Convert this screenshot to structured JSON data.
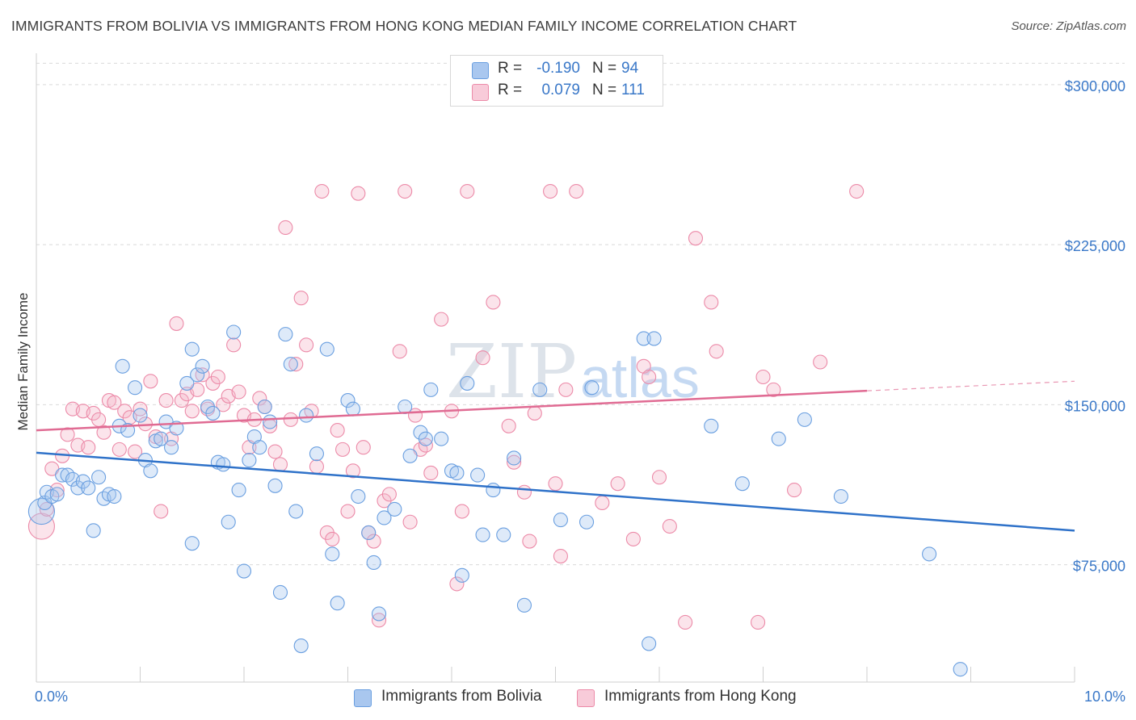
{
  "header": {
    "title": "IMMIGRANTS FROM BOLIVIA VS IMMIGRANTS FROM HONG KONG MEDIAN FAMILY INCOME CORRELATION CHART",
    "source": "Source: ZipAtlas.com"
  },
  "legend": {
    "rows": [
      {
        "r_label": "R =",
        "r_value": "-0.190",
        "n_label": "N =",
        "n_value": "94",
        "color": "#a9c7ef"
      },
      {
        "r_label": "R =",
        "r_value": "0.079",
        "n_label": "N =",
        "n_value": "111",
        "color": "#f5b8cb"
      }
    ]
  },
  "bottom_legend": {
    "items": [
      {
        "label": "Immigrants from Bolivia",
        "color": "#a9c7ef"
      },
      {
        "label": "Immigrants from Hong Kong",
        "color": "#f5b8cb"
      }
    ]
  },
  "watermark": {
    "zip": "ZIP",
    "atlas": "atlas"
  },
  "chart_data": {
    "type": "scatter",
    "title": "IMMIGRANTS FROM BOLIVIA VS IMMIGRANTS FROM HONG KONG MEDIAN FAMILY INCOME CORRELATION CHART",
    "xlabel": "",
    "ylabel": "Median Family Income",
    "xlim": [
      0,
      10
    ],
    "ylim": [
      20000,
      320000
    ],
    "x_tick_labels": [
      "0.0%",
      "10.0%"
    ],
    "y_ticks": [
      75000,
      150000,
      225000,
      300000
    ],
    "y_tick_labels": [
      "$75,000",
      "$150,000",
      "$225,000",
      "$300,000"
    ],
    "grid": true,
    "legend_position": "top-center",
    "series": [
      {
        "name": "Immigrants from Bolivia",
        "color": "#6a9fe0",
        "fill": "#a9c7ef",
        "trend": {
          "x": [
            0,
            10
          ],
          "y": [
            127500,
            91000
          ]
        },
        "points": [
          [
            0.05,
            100000
          ],
          [
            0.08,
            104000
          ],
          [
            0.1,
            109000
          ],
          [
            0.15,
            107000
          ],
          [
            0.2,
            108000
          ],
          [
            0.25,
            117000
          ],
          [
            0.3,
            117000
          ],
          [
            0.35,
            115000
          ],
          [
            0.4,
            111000
          ],
          [
            0.45,
            114000
          ],
          [
            0.5,
            111000
          ],
          [
            0.55,
            91000
          ],
          [
            0.6,
            116000
          ],
          [
            0.65,
            106000
          ],
          [
            0.7,
            108000
          ],
          [
            0.75,
            107000
          ],
          [
            0.8,
            140000
          ],
          [
            0.83,
            168000
          ],
          [
            0.88,
            138000
          ],
          [
            0.95,
            158000
          ],
          [
            1.0,
            145000
          ],
          [
            1.05,
            124000
          ],
          [
            1.1,
            119000
          ],
          [
            1.15,
            133000
          ],
          [
            1.2,
            134000
          ],
          [
            1.25,
            142000
          ],
          [
            1.3,
            130000
          ],
          [
            1.35,
            139000
          ],
          [
            1.45,
            160000
          ],
          [
            1.5,
            85000
          ],
          [
            1.5,
            176000
          ],
          [
            1.55,
            164000
          ],
          [
            1.6,
            168000
          ],
          [
            1.65,
            149000
          ],
          [
            1.7,
            146000
          ],
          [
            1.75,
            123000
          ],
          [
            1.8,
            122000
          ],
          [
            1.85,
            95000
          ],
          [
            1.9,
            184000
          ],
          [
            1.95,
            110000
          ],
          [
            2.0,
            72000
          ],
          [
            2.05,
            124000
          ],
          [
            2.1,
            135000
          ],
          [
            2.15,
            130000
          ],
          [
            2.2,
            149000
          ],
          [
            2.25,
            142000
          ],
          [
            2.3,
            112000
          ],
          [
            2.35,
            62000
          ],
          [
            2.4,
            183000
          ],
          [
            2.45,
            169000
          ],
          [
            2.5,
            100000
          ],
          [
            2.55,
            37000
          ],
          [
            2.6,
            145000
          ],
          [
            2.7,
            127000
          ],
          [
            2.8,
            176000
          ],
          [
            2.85,
            80000
          ],
          [
            2.9,
            57000
          ],
          [
            3.0,
            152000
          ],
          [
            3.05,
            148000
          ],
          [
            3.1,
            107000
          ],
          [
            3.2,
            90000
          ],
          [
            3.25,
            76000
          ],
          [
            3.3,
            52000
          ],
          [
            3.35,
            97000
          ],
          [
            3.45,
            101000
          ],
          [
            3.55,
            149000
          ],
          [
            3.6,
            126000
          ],
          [
            3.7,
            137000
          ],
          [
            3.75,
            134000
          ],
          [
            3.8,
            157000
          ],
          [
            3.9,
            134000
          ],
          [
            4.0,
            119000
          ],
          [
            4.05,
            118000
          ],
          [
            4.1,
            70000
          ],
          [
            4.15,
            160000
          ],
          [
            4.25,
            117000
          ],
          [
            4.3,
            89000
          ],
          [
            4.4,
            110000
          ],
          [
            4.5,
            89000
          ],
          [
            4.6,
            125000
          ],
          [
            4.7,
            56000
          ],
          [
            4.85,
            157000
          ],
          [
            5.05,
            96000
          ],
          [
            5.3,
            95000
          ],
          [
            5.35,
            158000
          ],
          [
            5.85,
            181000
          ],
          [
            5.9,
            38000
          ],
          [
            5.95,
            181000
          ],
          [
            6.5,
            140000
          ],
          [
            6.8,
            113000
          ],
          [
            7.15,
            134000
          ],
          [
            7.4,
            143000
          ],
          [
            7.75,
            107000
          ],
          [
            8.6,
            80000
          ],
          [
            8.9,
            26000
          ]
        ]
      },
      {
        "name": "Immigrants from Hong Kong",
        "color": "#ec8aa8",
        "fill": "#f5b8cb",
        "trend": {
          "x": [
            0,
            8.0
          ],
          "y": [
            138000,
            156500
          ]
        },
        "trend_dashed": {
          "x": [
            8.0,
            10
          ],
          "y": [
            156500,
            161000
          ]
        },
        "points": [
          [
            0.05,
            93000
          ],
          [
            0.1,
            101000
          ],
          [
            0.15,
            120000
          ],
          [
            0.2,
            110000
          ],
          [
            0.25,
            126000
          ],
          [
            0.3,
            136000
          ],
          [
            0.35,
            148000
          ],
          [
            0.4,
            131000
          ],
          [
            0.45,
            147000
          ],
          [
            0.5,
            130000
          ],
          [
            0.55,
            146000
          ],
          [
            0.6,
            143000
          ],
          [
            0.65,
            137000
          ],
          [
            0.7,
            152000
          ],
          [
            0.75,
            151000
          ],
          [
            0.8,
            129000
          ],
          [
            0.85,
            147000
          ],
          [
            0.9,
            144000
          ],
          [
            0.95,
            128000
          ],
          [
            1.0,
            148000
          ],
          [
            1.05,
            141000
          ],
          [
            1.1,
            161000
          ],
          [
            1.15,
            135000
          ],
          [
            1.2,
            100000
          ],
          [
            1.25,
            152000
          ],
          [
            1.3,
            134000
          ],
          [
            1.35,
            188000
          ],
          [
            1.4,
            152000
          ],
          [
            1.45,
            155000
          ],
          [
            1.5,
            147000
          ],
          [
            1.55,
            157000
          ],
          [
            1.6,
            164000
          ],
          [
            1.65,
            148000
          ],
          [
            1.7,
            160000
          ],
          [
            1.75,
            163000
          ],
          [
            1.8,
            150000
          ],
          [
            1.85,
            154000
          ],
          [
            1.9,
            178000
          ],
          [
            1.95,
            156000
          ],
          [
            2.0,
            145000
          ],
          [
            2.05,
            130000
          ],
          [
            2.1,
            143000
          ],
          [
            2.15,
            153000
          ],
          [
            2.2,
            149000
          ],
          [
            2.25,
            140000
          ],
          [
            2.3,
            128000
          ],
          [
            2.35,
            122000
          ],
          [
            2.4,
            233000
          ],
          [
            2.45,
            143000
          ],
          [
            2.5,
            169000
          ],
          [
            2.55,
            200000
          ],
          [
            2.6,
            178000
          ],
          [
            2.65,
            147000
          ],
          [
            2.7,
            121000
          ],
          [
            2.75,
            250000
          ],
          [
            2.8,
            90000
          ],
          [
            2.85,
            87000
          ],
          [
            2.9,
            138000
          ],
          [
            2.95,
            129000
          ],
          [
            3.0,
            100000
          ],
          [
            3.05,
            119000
          ],
          [
            3.1,
            249000
          ],
          [
            3.15,
            130000
          ],
          [
            3.2,
            90000
          ],
          [
            3.25,
            86000
          ],
          [
            3.3,
            49000
          ],
          [
            3.35,
            105000
          ],
          [
            3.4,
            108000
          ],
          [
            3.5,
            175000
          ],
          [
            3.55,
            250000
          ],
          [
            3.6,
            95000
          ],
          [
            3.65,
            145000
          ],
          [
            3.7,
            129000
          ],
          [
            3.75,
            131000
          ],
          [
            3.8,
            118000
          ],
          [
            3.9,
            190000
          ],
          [
            4.0,
            147000
          ],
          [
            4.05,
            66000
          ],
          [
            4.1,
            100000
          ],
          [
            4.15,
            250000
          ],
          [
            4.3,
            172000
          ],
          [
            4.4,
            198000
          ],
          [
            4.55,
            140000
          ],
          [
            4.6,
            123000
          ],
          [
            4.7,
            109000
          ],
          [
            4.75,
            86000
          ],
          [
            4.8,
            146000
          ],
          [
            4.95,
            250000
          ],
          [
            5.0,
            113000
          ],
          [
            5.05,
            79000
          ],
          [
            5.1,
            157000
          ],
          [
            5.2,
            250000
          ],
          [
            5.45,
            104000
          ],
          [
            5.6,
            113000
          ],
          [
            5.75,
            87000
          ],
          [
            5.85,
            168000
          ],
          [
            5.9,
            163000
          ],
          [
            6.0,
            116000
          ],
          [
            6.1,
            93000
          ],
          [
            6.25,
            48000
          ],
          [
            6.35,
            228000
          ],
          [
            6.5,
            198000
          ],
          [
            6.55,
            175000
          ],
          [
            6.95,
            48000
          ],
          [
            7.0,
            163000
          ],
          [
            7.1,
            157000
          ],
          [
            7.3,
            110000
          ],
          [
            7.55,
            170000
          ],
          [
            7.9,
            250000
          ]
        ]
      }
    ]
  }
}
